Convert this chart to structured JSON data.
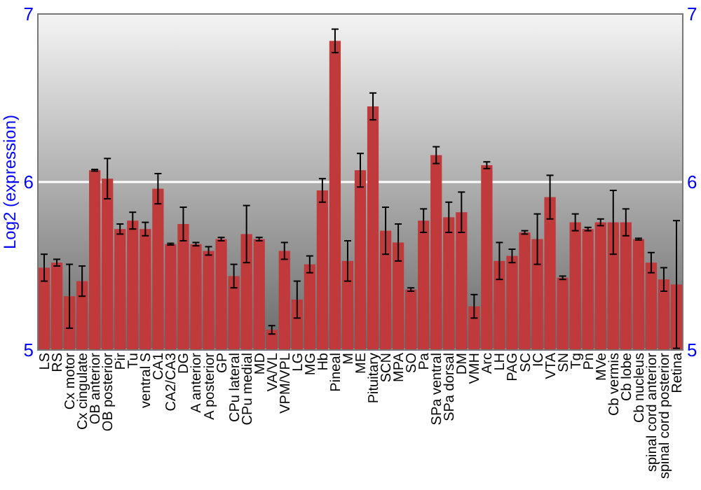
{
  "chart_data": {
    "type": "bar",
    "ylabel": "Log2 (expression)",
    "categories": [
      "LS",
      "RS",
      "Cx motor",
      "Cx cingulate",
      "OB anterior",
      "OB posterior",
      "Pir",
      "Tu",
      "ventral S",
      "CA1",
      "CA2/CA3",
      "DG",
      "A anterior",
      "A posterior",
      "GP",
      "CPu lateral",
      "CPu medial",
      "MD",
      "VA/VL",
      "VPM/VPL",
      "LG",
      "MG",
      "Hb",
      "Pineal",
      "M",
      "ME",
      "Pituitary",
      "SCN",
      "MPA",
      "SO",
      "Pa",
      "SPa ventral",
      "SPa dorsal",
      "DM",
      "VMH",
      "Arc",
      "LH",
      "PAG",
      "SC",
      "IC",
      "VTA",
      "SN",
      "Tg",
      "Pn",
      "MVe",
      "Cb vermis",
      "Cb lobe",
      "Cb nucleus",
      "spinal cord anterior",
      "spinal cord posterior",
      "Retina"
    ],
    "values": [
      5.49,
      5.52,
      5.32,
      5.41,
      6.07,
      6.02,
      5.72,
      5.77,
      5.72,
      5.96,
      5.63,
      5.75,
      5.63,
      5.59,
      5.66,
      5.44,
      5.69,
      5.66,
      5.12,
      5.59,
      5.3,
      5.51,
      5.95,
      6.84,
      5.53,
      6.07,
      6.45,
      5.71,
      5.64,
      5.36,
      5.77,
      6.16,
      5.79,
      5.82,
      5.26,
      6.1,
      5.53,
      5.56,
      5.7,
      5.66,
      5.91,
      5.43,
      5.76,
      5.72,
      5.76,
      5.76,
      5.76,
      5.66,
      5.52,
      5.42,
      5.39
    ],
    "errors": [
      0.08,
      0.02,
      0.19,
      0.09,
      0.005,
      0.12,
      0.03,
      0.05,
      0.04,
      0.09,
      0.005,
      0.1,
      0.01,
      0.025,
      0.01,
      0.07,
      0.17,
      0.01,
      0.025,
      0.05,
      0.11,
      0.05,
      0.07,
      0.07,
      0.12,
      0.1,
      0.08,
      0.14,
      0.11,
      0.01,
      0.07,
      0.05,
      0.09,
      0.12,
      0.07,
      0.02,
      0.11,
      0.04,
      0.01,
      0.15,
      0.13,
      0.01,
      0.05,
      0.01,
      0.02,
      0.19,
      0.08,
      0.005,
      0.06,
      0.07,
      0.38
    ],
    "color": "#c0393b",
    "ylim": [
      5,
      7
    ],
    "yticks": [
      5,
      6,
      7
    ],
    "y2lim": [
      5,
      7
    ],
    "y2ticks": [
      5,
      6,
      7
    ],
    "grid": "y"
  }
}
